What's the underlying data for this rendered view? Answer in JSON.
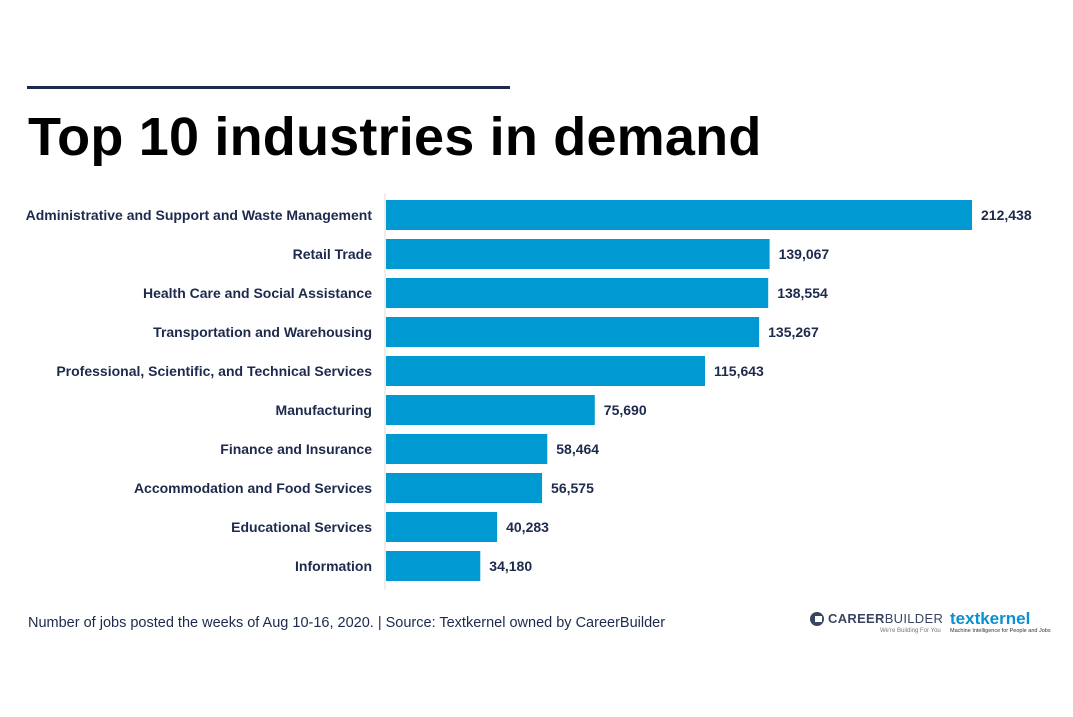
{
  "title": "Top 10 industries in demand",
  "footnote": "Number of jobs posted the weeks of Aug 10-16, 2020. | Source: Textkernel owned by CareerBuilder",
  "logos": {
    "careerbuilder_bold": "CAREER",
    "careerbuilder_light": "BUILDER",
    "careerbuilder_tagline": "We're Building For You",
    "textkernel_name": "textkernel",
    "textkernel_tagline": "Machine Intelligence for People and Jobs"
  },
  "colors": {
    "bar": "#0099d1",
    "text": "#1d2a4d",
    "axis": "#dddddd"
  },
  "chart_data": {
    "type": "bar",
    "orientation": "horizontal",
    "title": "Top 10 industries in demand",
    "xlabel": "",
    "ylabel": "",
    "grid": false,
    "categories": [
      "Administrative and Support and Waste Management",
      "Retail Trade",
      "Health Care and Social Assistance",
      "Transportation and Warehousing",
      "Professional, Scientific, and Technical Services",
      "Manufacturing",
      "Finance and Insurance",
      "Accommodation and Food Services",
      "Educational Services",
      "Information"
    ],
    "values": [
      212438,
      139067,
      138554,
      135267,
      115643,
      75690,
      58464,
      56575,
      40283,
      34180
    ],
    "value_labels": [
      "212,438",
      "139,067",
      "138,554",
      "135,267",
      "115,643",
      "75,690",
      "58,464",
      "56,575",
      "40,283",
      "34,180"
    ],
    "xlim": [
      0,
      212438
    ]
  }
}
